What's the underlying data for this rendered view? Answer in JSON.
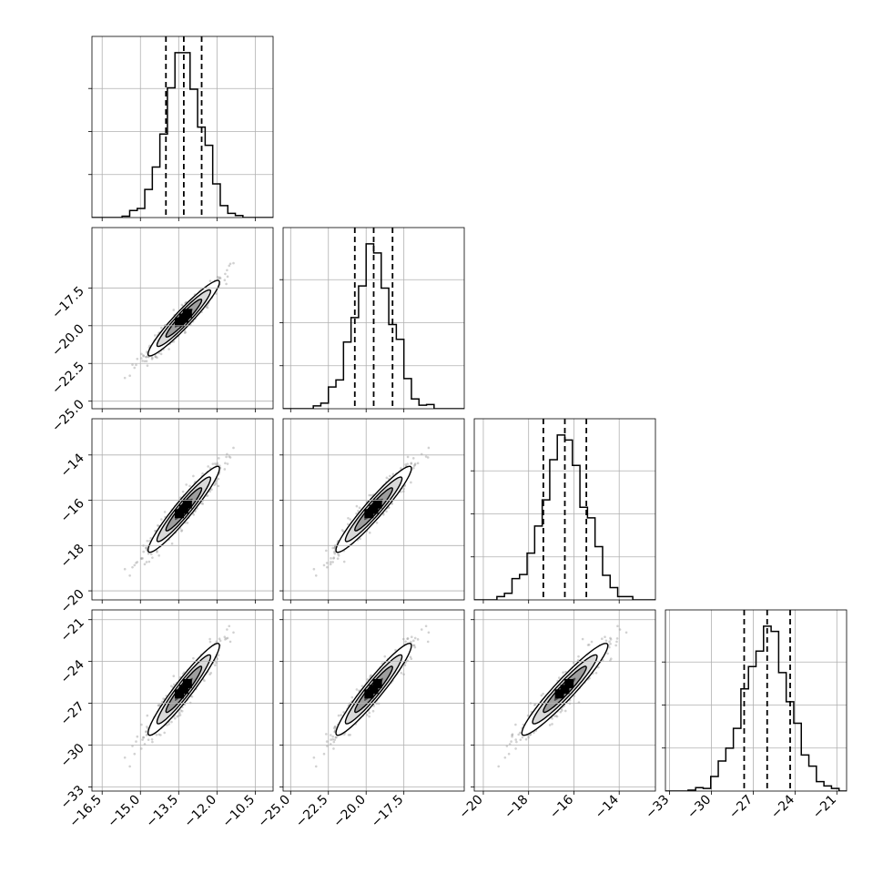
{
  "chart_data": {
    "type": "corner",
    "grid": true,
    "parameters": [
      {
        "median": -13.3,
        "q16": -14.0,
        "q84": -12.6,
        "sigma": 0.7,
        "range": [
          -16.9,
          -9.8
        ],
        "ticks": [
          "−16.5",
          "−15.0",
          "−13.5",
          "−12.0",
          "−10.5"
        ],
        "tick_values": [
          -16.5,
          -15.0,
          -13.5,
          -12.0,
          -10.5
        ]
      },
      {
        "median": -19.5,
        "q16": -20.75,
        "q84": -18.25,
        "sigma": 1.25,
        "range": [
          -25.5,
          -13.5
        ],
        "ticks": [
          "−25.0",
          "−22.5",
          "−20.0",
          "−17.5"
        ],
        "tick_values": [
          -25.0,
          -22.5,
          -20.0,
          -17.5
        ]
      },
      {
        "median": -16.4,
        "q16": -17.35,
        "q84": -15.45,
        "sigma": 0.95,
        "range": [
          -20.4,
          -12.4
        ],
        "ticks": [
          "−20",
          "−18",
          "−16",
          "−14"
        ],
        "tick_values": [
          -20,
          -18,
          -16,
          -14
        ]
      },
      {
        "median": -26.0,
        "q16": -27.65,
        "q84": -24.35,
        "sigma": 1.65,
        "range": [
          -33.3,
          -20.3
        ],
        "ticks": [
          "−33",
          "−30",
          "−27",
          "−24",
          "−21"
        ],
        "tick_values": [
          -33,
          -30,
          -27,
          -24,
          -21
        ]
      }
    ],
    "correlation": 0.95
  }
}
